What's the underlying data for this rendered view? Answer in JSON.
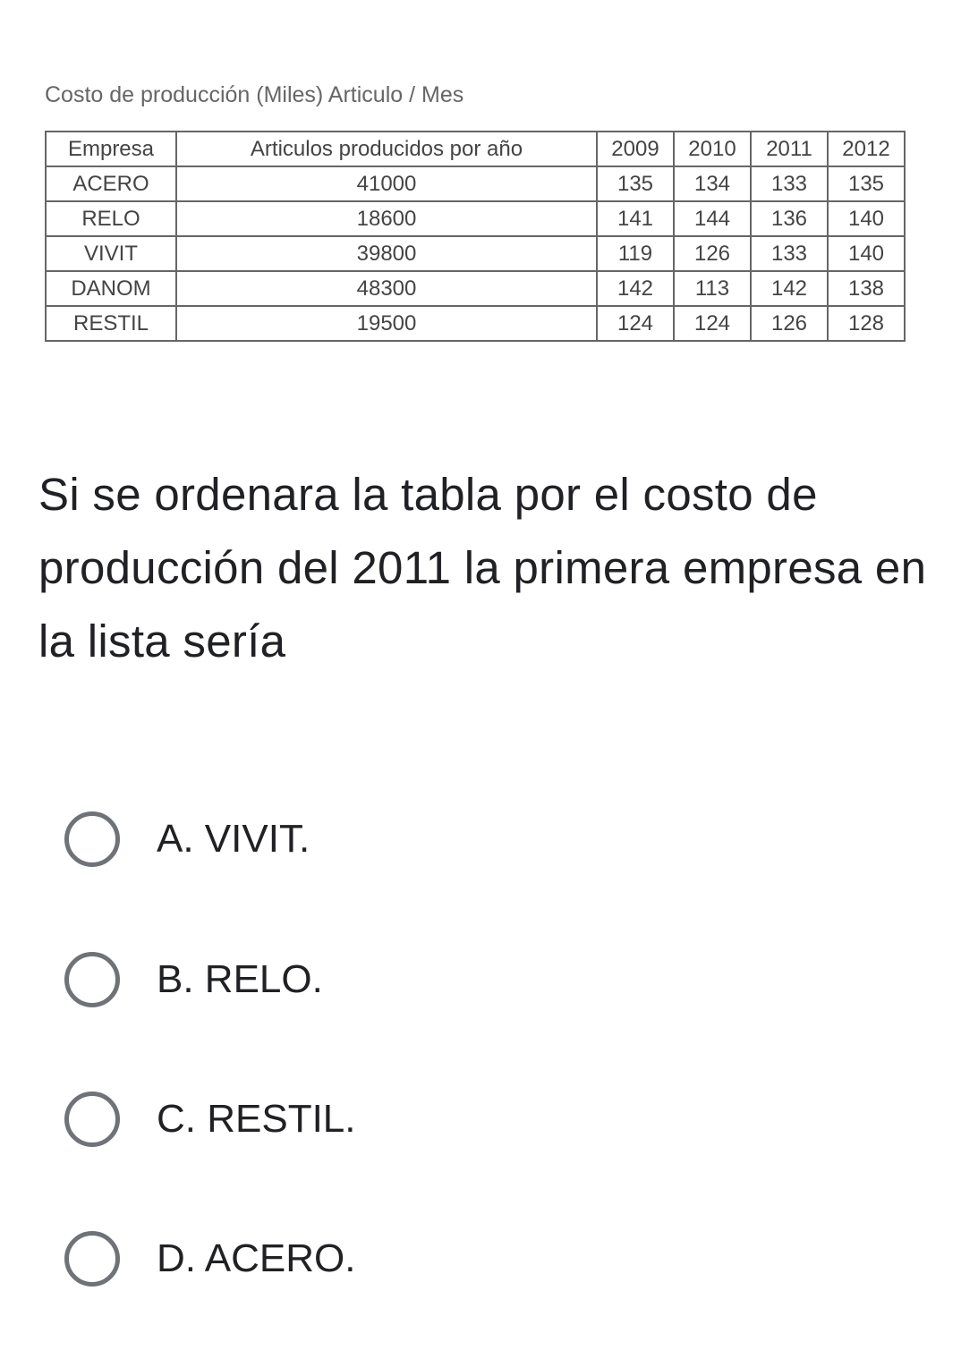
{
  "caption": "Costo de producción (Miles) Articulo / Mes",
  "table": {
    "headers": [
      "Empresa",
      "Articulos producidos por año",
      "2009",
      "2010",
      "2011",
      "2012"
    ],
    "rows": [
      [
        "ACERO",
        "41000",
        "135",
        "134",
        "133",
        "135"
      ],
      [
        "RELO",
        "18600",
        "141",
        "144",
        "136",
        "140"
      ],
      [
        "VIVIT",
        "39800",
        "119",
        "126",
        "133",
        "140"
      ],
      [
        "DANOM",
        "48300",
        "142",
        "113",
        "142",
        "138"
      ],
      [
        "RESTIL",
        "19500",
        "124",
        "124",
        "126",
        "128"
      ]
    ]
  },
  "question": "Si se ordenara la tabla por el costo de producción del 2011 la primera empresa en la lista sería",
  "options": [
    {
      "label": "A. VIVIT.",
      "selected": false
    },
    {
      "label": "B. RELO.",
      "selected": false
    },
    {
      "label": "C. RESTIL.",
      "selected": false
    },
    {
      "label": "D. ACERO.",
      "selected": false
    }
  ]
}
